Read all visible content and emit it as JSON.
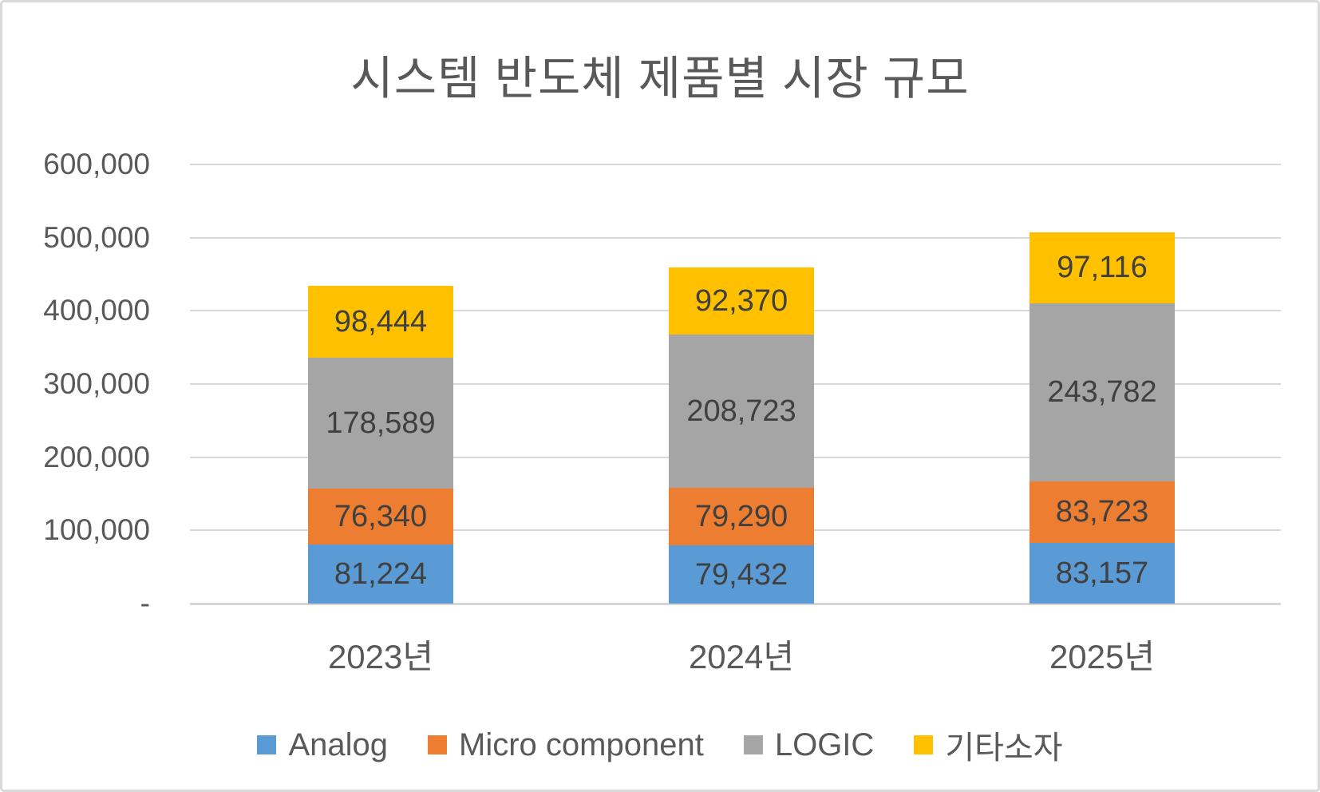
{
  "chart_data": {
    "type": "bar",
    "stacked": true,
    "title": "시스템 반도체 제품별 시장 규모",
    "categories": [
      "2023년",
      "2024년",
      "2025년"
    ],
    "series": [
      {
        "name": "Analog",
        "color": "#5B9BD5",
        "values": [
          81224,
          79432,
          83157
        ]
      },
      {
        "name": "Micro component",
        "color": "#ED7D31",
        "values": [
          76340,
          79290,
          83723
        ]
      },
      {
        "name": "LOGIC",
        "color": "#A5A5A5",
        "values": [
          178589,
          208723,
          243782
        ]
      },
      {
        "name": "기타소자",
        "color": "#FFC000",
        "values": [
          98444,
          92370,
          97116
        ]
      }
    ],
    "totals": [
      434597,
      459815,
      507778
    ],
    "ylim": [
      0,
      600000
    ],
    "y_ticks": [
      0,
      100000,
      200000,
      300000,
      400000,
      500000,
      600000
    ],
    "y_tick_labels": [
      "-",
      "100,000",
      "200,000",
      "300,000",
      "400,000",
      "500,000",
      "600,000"
    ],
    "grid": true,
    "data_labels": true,
    "legend_position": "bottom",
    "colors": {
      "title_text": "#595959",
      "axis_text": "#595959",
      "data_label_text": "#404040",
      "gridline": "#D9D9D9",
      "frame_border": "#D9D9D9",
      "background": "#FFFFFF"
    }
  }
}
